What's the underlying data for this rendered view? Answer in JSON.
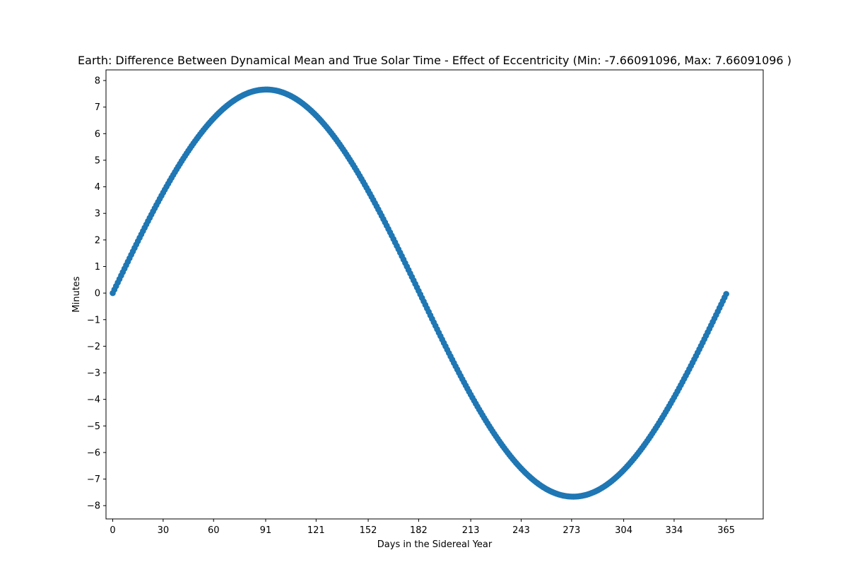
{
  "chart_data": {
    "type": "scatter",
    "title": "Earth: Difference Between Dynamical Mean and True Solar Time - Effect of Eccentricity (Min: -7.66091096, Max: 7.66091096 )",
    "xlabel": "Days in the Sidereal Year",
    "ylabel": "Minutes",
    "xlim": [
      -4,
      387
    ],
    "ylim": [
      -8.5,
      8.4
    ],
    "x_ticks": [
      0,
      30,
      60,
      91,
      121,
      152,
      182,
      213,
      243,
      273,
      304,
      334,
      365
    ],
    "y_ticks": [
      8,
      7,
      6,
      5,
      4,
      3,
      2,
      1,
      0,
      -1,
      -2,
      -3,
      -4,
      -5,
      -6,
      -7,
      -8
    ],
    "grid": false,
    "legend": "none",
    "series": [
      {
        "color": "#1f77b4",
        "x_start": 0,
        "x_end": 365,
        "x_step": 1,
        "amplitude": 7.66091096,
        "period": 365.256,
        "formula": "amplitude * sin(2*pi*x/period)",
        "min": -7.66091096,
        "max": 7.66091096
      }
    ]
  }
}
